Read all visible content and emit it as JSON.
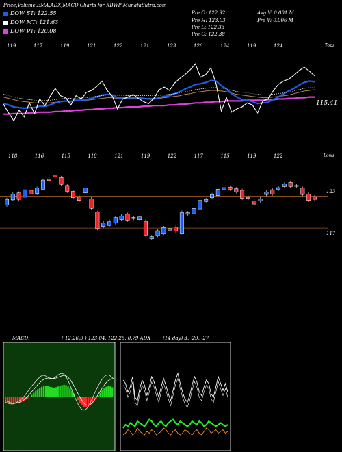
{
  "header": {
    "title": "Price,Volume,EMA,ADX,MACD Charts for KBWP MunafaSutra.com",
    "pre_o": "Pre  O: 122.92",
    "pre_h": "Pre  H: 123.03",
    "pre_l": "Pre  L: 122.33",
    "pre_c": "Pre  C: 122.38",
    "avg_v": "Avg V: 0.001 M",
    "pre_v": "Pre  V: 0.006  M"
  },
  "legend": [
    {
      "label": "DOW ST: 122.55",
      "color": "#1d5fe8"
    },
    {
      "label": "DOW MT: 121.63",
      "color": "#ffffff"
    },
    {
      "label": "DOW PT: 120.08",
      "color": "#e040e0"
    }
  ],
  "colors": {
    "up": "#1d5fe8",
    "down": "#e8242c",
    "ema_slow": "#e040e0",
    "ema_mid": "#b08850",
    "grid_line": "#9a5a22"
  },
  "chart_data": [
    {
      "type": "line",
      "name": "price-ema-panel",
      "top_label": "Tops",
      "bottom_label": "Lows",
      "last_value_label": "115.41",
      "top_ticks": [
        "119",
        "117",
        "119",
        "121",
        "122",
        "121",
        "123",
        "126",
        "124",
        "119",
        "124"
      ],
      "bottom_ticks": [
        "118",
        "116",
        "115",
        "118",
        "121",
        "119",
        "122",
        "117",
        "115",
        "119",
        "122"
      ],
      "price": [
        120.5,
        119.2,
        118.0,
        119.6,
        118.6,
        120.7,
        119.1,
        121.3,
        120.3,
        121.7,
        122.9,
        121.8,
        121.5,
        120.4,
        121.8,
        121.3,
        122.3,
        122.6,
        123.2,
        124.0,
        122.6,
        121.7,
        119.8,
        121.3,
        121.6,
        122.0,
        121.4,
        120.9,
        120.6,
        121.4,
        122.7,
        123.1,
        122.6,
        123.7,
        124.4,
        125.0,
        125.7,
        126.6,
        124.6,
        125.0,
        126.0,
        123.6,
        119.5,
        121.5,
        119.3,
        119.8,
        120.1,
        120.7,
        120.4,
        119.2,
        121.0,
        121.3,
        122.5,
        123.5,
        124.0,
        124.3,
        124.9,
        125.6,
        126.1,
        125.5,
        124.8
      ],
      "ema_fast": [
        120.6,
        120.4,
        120.1,
        120.0,
        119.9,
        120.0,
        120.0,
        120.2,
        120.2,
        120.4,
        120.7,
        120.9,
        121.0,
        120.9,
        121.1,
        121.1,
        121.2,
        121.4,
        121.6,
        121.9,
        122.0,
        121.9,
        121.5,
        121.5,
        121.5,
        121.5,
        121.5,
        121.4,
        121.3,
        121.3,
        121.5,
        121.7,
        121.8,
        122.1,
        122.4,
        122.8,
        123.1,
        123.5,
        123.6,
        123.8,
        124.1,
        124.0,
        123.3,
        122.8,
        122.1,
        121.6,
        121.2,
        121.1,
        120.9,
        120.6,
        120.7,
        120.8,
        121.2,
        121.6,
        122.1,
        122.5,
        122.9,
        123.4,
        123.8,
        124.0,
        123.9
      ],
      "ema_mid": [
        121.6,
        121.4,
        121.2,
        121.0,
        120.9,
        120.8,
        120.7,
        120.7,
        120.7,
        120.7,
        120.8,
        120.9,
        121.0,
        121.0,
        121.0,
        121.1,
        121.1,
        121.2,
        121.3,
        121.4,
        121.5,
        121.5,
        121.4,
        121.4,
        121.4,
        121.4,
        121.4,
        121.4,
        121.4,
        121.4,
        121.4,
        121.5,
        121.6,
        121.7,
        121.8,
        122.0,
        122.1,
        122.3,
        122.4,
        122.5,
        122.6,
        122.6,
        122.5,
        122.4,
        122.2,
        122.0,
        121.9,
        121.8,
        121.7,
        121.6,
        121.5,
        121.5,
        121.6,
        121.7,
        121.8,
        121.9,
        122.1,
        122.3,
        122.5,
        122.6,
        122.7
      ],
      "ema_slow": [
        119.0,
        119.0,
        119.1,
        119.1,
        119.1,
        119.2,
        119.2,
        119.3,
        119.3,
        119.3,
        119.4,
        119.4,
        119.5,
        119.5,
        119.6,
        119.6,
        119.7,
        119.7,
        119.8,
        119.8,
        119.9,
        119.9,
        120.0,
        120.0,
        120.1,
        120.1,
        120.1,
        120.2,
        120.2,
        120.3,
        120.3,
        120.3,
        120.4,
        120.4,
        120.5,
        120.5,
        120.6,
        120.7,
        120.7,
        120.8,
        120.8,
        120.9,
        120.9,
        121.0,
        121.0,
        121.0,
        121.0,
        121.1,
        121.1,
        121.1,
        121.1,
        121.2,
        121.2,
        121.3,
        121.3,
        121.4,
        121.4,
        121.5,
        121.5,
        121.6,
        121.6
      ],
      "ylim": [
        114.0,
        128.5
      ]
    },
    {
      "type": "candlestick",
      "name": "price-candles",
      "level_labels": [
        "123",
        "117"
      ],
      "level_values": [
        123.0,
        117.0
      ],
      "ylim": [
        112.0,
        130.0
      ],
      "candles": [
        {
          "o": 121.3,
          "c": 122.4,
          "h": 122.7,
          "l": 121.0
        },
        {
          "o": 122.3,
          "c": 123.4,
          "h": 123.7,
          "l": 122.1
        },
        {
          "o": 123.6,
          "c": 122.4,
          "h": 123.9,
          "l": 122.0
        },
        {
          "o": 122.8,
          "c": 124.2,
          "h": 124.6,
          "l": 122.5
        },
        {
          "o": 124.1,
          "c": 123.4,
          "h": 124.4,
          "l": 123.2
        },
        {
          "o": 123.5,
          "c": 124.5,
          "h": 124.8,
          "l": 123.2
        },
        {
          "o": 124.3,
          "c": 126.0,
          "h": 126.3,
          "l": 124.1
        },
        {
          "o": 126.2,
          "c": 125.9,
          "h": 126.7,
          "l": 125.6
        },
        {
          "o": 127.0,
          "c": 126.6,
          "h": 127.5,
          "l": 126.3
        },
        {
          "o": 126.5,
          "c": 125.2,
          "h": 126.8,
          "l": 124.9
        },
        {
          "o": 125.0,
          "c": 123.9,
          "h": 125.3,
          "l": 123.6
        },
        {
          "o": 123.9,
          "c": 122.7,
          "h": 124.2,
          "l": 122.5
        },
        {
          "o": 122.9,
          "c": 122.2,
          "h": 123.2,
          "l": 121.9
        },
        {
          "o": 123.6,
          "c": 124.5,
          "h": 124.8,
          "l": 123.3
        },
        {
          "o": 122.5,
          "c": 120.7,
          "h": 122.8,
          "l": 120.5
        },
        {
          "o": 120.0,
          "c": 116.9,
          "h": 120.2,
          "l": 116.6
        },
        {
          "o": 117.3,
          "c": 118.0,
          "h": 118.3,
          "l": 117.0
        },
        {
          "o": 117.5,
          "c": 118.2,
          "h": 118.6,
          "l": 117.2
        },
        {
          "o": 118.0,
          "c": 119.0,
          "h": 119.3,
          "l": 117.7
        },
        {
          "o": 118.6,
          "c": 119.3,
          "h": 119.7,
          "l": 118.3
        },
        {
          "o": 119.6,
          "c": 118.5,
          "h": 119.9,
          "l": 118.2
        },
        {
          "o": 119.0,
          "c": 118.8,
          "h": 119.3,
          "l": 118.5
        },
        {
          "o": 118.6,
          "c": 119.1,
          "h": 119.4,
          "l": 118.3
        },
        {
          "o": 118.3,
          "c": 115.7,
          "h": 118.6,
          "l": 115.4
        },
        {
          "o": 115.0,
          "c": 115.4,
          "h": 115.7,
          "l": 114.7
        },
        {
          "o": 115.6,
          "c": 116.5,
          "h": 116.8,
          "l": 115.3
        },
        {
          "o": 116.0,
          "c": 117.1,
          "h": 117.4,
          "l": 115.7
        },
        {
          "o": 116.9,
          "c": 116.6,
          "h": 117.2,
          "l": 116.3
        },
        {
          "o": 117.2,
          "c": 116.4,
          "h": 117.5,
          "l": 116.1
        },
        {
          "o": 116.0,
          "c": 119.9,
          "h": 120.3,
          "l": 115.8
        },
        {
          "o": 119.6,
          "c": 119.9,
          "h": 120.2,
          "l": 119.3
        },
        {
          "o": 119.7,
          "c": 120.7,
          "h": 121.0,
          "l": 119.4
        },
        {
          "o": 120.6,
          "c": 122.2,
          "h": 122.5,
          "l": 120.3
        },
        {
          "o": 122.0,
          "c": 122.4,
          "h": 122.7,
          "l": 121.8
        },
        {
          "o": 122.7,
          "c": 123.3,
          "h": 123.6,
          "l": 122.4
        },
        {
          "o": 123.1,
          "c": 124.3,
          "h": 124.6,
          "l": 122.8
        },
        {
          "o": 124.2,
          "c": 124.6,
          "h": 124.9,
          "l": 123.9
        },
        {
          "o": 124.7,
          "c": 124.3,
          "h": 125.0,
          "l": 124.0
        },
        {
          "o": 124.4,
          "c": 123.8,
          "h": 124.7,
          "l": 123.5
        },
        {
          "o": 124.1,
          "c": 122.6,
          "h": 124.4,
          "l": 122.3
        },
        {
          "o": 122.8,
          "c": 122.6,
          "h": 123.1,
          "l": 122.3
        },
        {
          "o": 122.1,
          "c": 121.5,
          "h": 122.4,
          "l": 121.2
        },
        {
          "o": 122.1,
          "c": 122.5,
          "h": 122.8,
          "l": 121.8
        },
        {
          "o": 123.3,
          "c": 123.8,
          "h": 124.1,
          "l": 123.0
        },
        {
          "o": 124.2,
          "c": 123.4,
          "h": 124.5,
          "l": 123.1
        },
        {
          "o": 124.3,
          "c": 124.6,
          "h": 124.9,
          "l": 124.0
        },
        {
          "o": 124.8,
          "c": 125.3,
          "h": 125.6,
          "l": 124.5
        },
        {
          "o": 125.6,
          "c": 124.8,
          "h": 125.9,
          "l": 124.5
        },
        {
          "o": 124.9,
          "c": 125.0,
          "h": 125.3,
          "l": 124.6
        },
        {
          "o": 124.5,
          "c": 123.3,
          "h": 124.8,
          "l": 123.0
        },
        {
          "o": 123.4,
          "c": 122.2,
          "h": 123.7,
          "l": 121.9
        },
        {
          "o": 122.9,
          "c": 122.4,
          "h": 123.2,
          "l": 122.1
        }
      ]
    },
    {
      "type": "line",
      "name": "macd-panel",
      "label": "MACD:",
      "values_text": "( 12,26,9 ) 123.04,  122.25, 0.79 ADX",
      "histogram": [
        -1.4,
        -1.5,
        -1.6,
        -1.7,
        -1.7,
        -1.6,
        -1.5,
        -1.3,
        -1.1,
        -0.9,
        -0.6,
        -0.3,
        0.2,
        0.6,
        1.1,
        1.6,
        2.0,
        2.4,
        2.6,
        2.8,
        2.9,
        2.8,
        2.6,
        2.5,
        2.4,
        2.5,
        2.7,
        2.9,
        3.0,
        3.1,
        3.0,
        2.7,
        2.2,
        1.6,
        0.9,
        0.1,
        -0.7,
        -1.4,
        -2.0,
        -2.4,
        -2.5,
        -2.4,
        -2.1,
        -1.6,
        -1.0,
        -0.3,
        0.4,
        1.1,
        1.7,
        2.2,
        2.6,
        2.8,
        2.7,
        2.5
      ],
      "macd": [
        -1.2,
        -1.4,
        -1.6,
        -1.7,
        -1.7,
        -1.5,
        -1.2,
        -0.9,
        -0.5,
        0.0,
        0.6,
        1.3,
        2.0,
        2.7,
        3.3,
        3.9,
        4.5,
        5.0,
        5.4,
        5.5,
        5.3,
        5.0,
        4.7,
        4.6,
        4.8,
        5.2,
        5.6,
        5.9,
        6.0,
        5.7,
        5.0,
        4.0,
        2.8,
        1.5,
        0.2,
        -1.0,
        -2.0,
        -2.8,
        -3.2,
        -3.2,
        -2.8,
        -2.0,
        -1.0,
        0.1,
        1.2,
        2.3,
        3.3,
        4.2,
        4.9,
        5.4,
        5.6,
        5.5,
        5.1,
        4.6
      ],
      "signal": [
        -0.8,
        -1.0,
        -1.2,
        -1.4,
        -1.5,
        -1.5,
        -1.4,
        -1.3,
        -1.1,
        -0.8,
        -0.4,
        0.1,
        0.7,
        1.3,
        1.9,
        2.5,
        3.1,
        3.6,
        4.1,
        4.5,
        4.7,
        4.8,
        4.8,
        4.7,
        4.7,
        4.8,
        5.0,
        5.2,
        5.4,
        5.5,
        5.3,
        4.9,
        4.3,
        3.5,
        2.6,
        1.6,
        0.6,
        -0.3,
        -1.1,
        -1.7,
        -2.0,
        -2.0,
        -1.7,
        -1.2,
        -0.5,
        0.3,
        1.1,
        1.9,
        2.7,
        3.4,
        4.0,
        4.4,
        4.6,
        4.6
      ],
      "ylim": [
        -12,
        12
      ]
    },
    {
      "type": "line",
      "name": "adx-panel",
      "values_text": "(14  day) 3,  -29,  -27",
      "adx": [
        40,
        38,
        33,
        36,
        42,
        30,
        28,
        35,
        40,
        37,
        31,
        36,
        42,
        39,
        34,
        30,
        36,
        41,
        37,
        32,
        28,
        34,
        40,
        44,
        38,
        33,
        29,
        27,
        31,
        37,
        42,
        39,
        33,
        31,
        36,
        40,
        38,
        32,
        30,
        36,
        42,
        38,
        34,
        38,
        33
      ],
      "di_plus": [
        12,
        14,
        13,
        15,
        14,
        13,
        16,
        15,
        14,
        13,
        15,
        17,
        16,
        14,
        13,
        15,
        16,
        14,
        13,
        15,
        16,
        17,
        15,
        14,
        16,
        15,
        14,
        13,
        14,
        16,
        15,
        14,
        16,
        15,
        13,
        14,
        16,
        15,
        14,
        13,
        14,
        15,
        14,
        13,
        14
      ],
      "di_minus": [
        8,
        9,
        11,
        10,
        8,
        9,
        12,
        10,
        9,
        8,
        10,
        9,
        11,
        10,
        8,
        9,
        10,
        12,
        11,
        9,
        8,
        10,
        11,
        9,
        8,
        9,
        11,
        10,
        9,
        8,
        10,
        11,
        9,
        8,
        10,
        12,
        11,
        9,
        10,
        11,
        9,
        10,
        11,
        9,
        10
      ],
      "ylim": [
        0,
        60
      ]
    }
  ]
}
